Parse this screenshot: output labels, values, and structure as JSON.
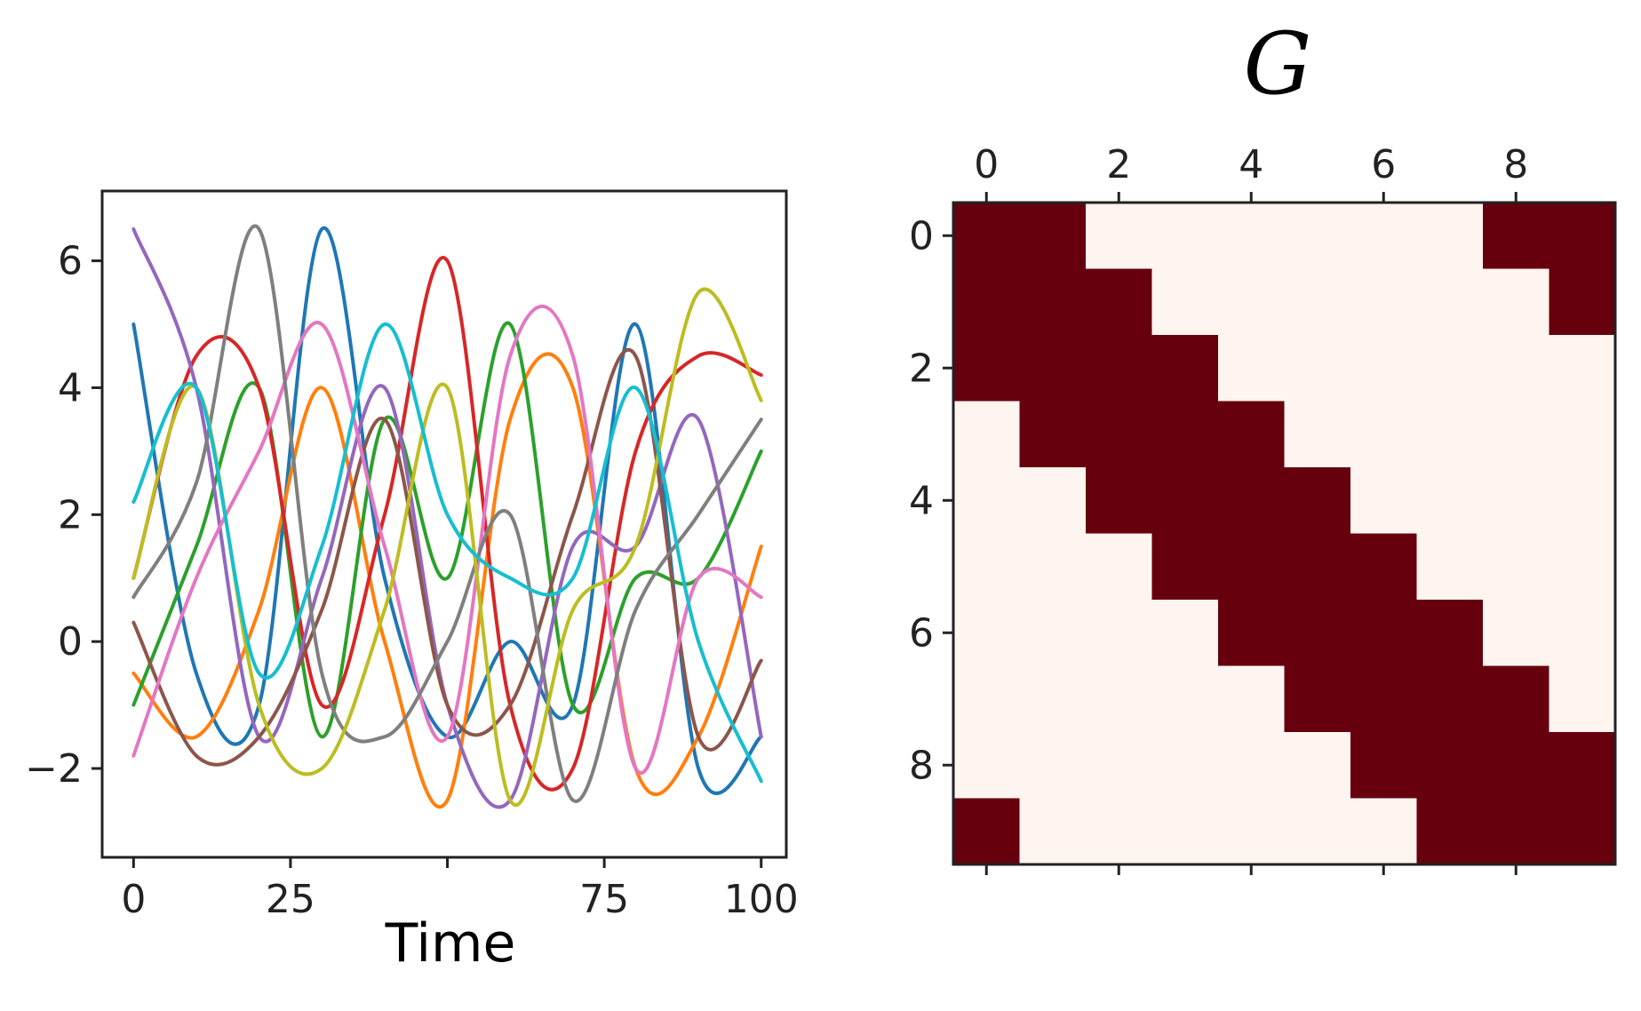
{
  "chart_data": [
    {
      "type": "line",
      "title": "",
      "xlabel": "Time",
      "ylabel": "",
      "xlim": [
        -5,
        104
      ],
      "ylim": [
        -3.4,
        7.1
      ],
      "x_ticks": [
        "0",
        "25",
        "",
        "75",
        "100"
      ],
      "x_tick_values": [
        0,
        25,
        50,
        75,
        100
      ],
      "y_ticks": [
        "6",
        "4",
        "2",
        "0",
        "−2"
      ],
      "y_tick_values": [
        6,
        4,
        2,
        0,
        -2
      ],
      "grid": false,
      "legend": "none",
      "x": [
        0,
        10,
        20,
        30,
        40,
        50,
        60,
        70,
        80,
        90,
        100
      ],
      "series": [
        {
          "color": "#1f77b4",
          "values": [
            5.0,
            -0.5,
            -1.0,
            6.5,
            1.0,
            -1.5,
            0.0,
            -1.0,
            5.0,
            -2.0,
            -1.5
          ]
        },
        {
          "color": "#ff7f0e",
          "values": [
            -0.5,
            -1.5,
            0.5,
            4.0,
            0.0,
            -2.5,
            3.5,
            4.0,
            -2.0,
            -1.5,
            1.5
          ]
        },
        {
          "color": "#2ca02c",
          "values": [
            -1.0,
            1.5,
            4.0,
            -1.5,
            3.5,
            1.0,
            5.0,
            -1.0,
            1.0,
            1.0,
            3.0
          ]
        },
        {
          "color": "#d62728",
          "values": [
            1.0,
            4.5,
            4.0,
            -1.0,
            2.0,
            6.0,
            -1.0,
            -2.0,
            3.0,
            4.5,
            4.2
          ]
        },
        {
          "color": "#9467bd",
          "values": [
            6.5,
            4.0,
            -1.5,
            1.0,
            4.0,
            -1.0,
            -2.5,
            1.5,
            1.5,
            3.5,
            -1.5
          ]
        },
        {
          "color": "#8c564b",
          "values": [
            0.3,
            -1.8,
            -1.5,
            0.5,
            3.5,
            -1.0,
            -1.0,
            2.0,
            4.5,
            -1.5,
            -0.3
          ]
        },
        {
          "color": "#e377c2",
          "values": [
            -1.8,
            1.0,
            3.0,
            5.0,
            1.5,
            -1.5,
            4.5,
            4.5,
            -2.0,
            1.0,
            0.7
          ]
        },
        {
          "color": "#7f7f7f",
          "values": [
            0.7,
            2.5,
            6.5,
            -0.5,
            -1.5,
            0.0,
            2.0,
            -2.5,
            0.5,
            2.0,
            3.5
          ]
        },
        {
          "color": "#bcbd22",
          "values": [
            1.0,
            4.0,
            -1.0,
            -2.0,
            0.5,
            4.0,
            -2.5,
            0.5,
            1.5,
            5.5,
            3.8
          ]
        },
        {
          "color": "#17becf",
          "values": [
            2.2,
            4.0,
            -0.5,
            1.5,
            5.0,
            2.0,
            1.0,
            1.0,
            4.0,
            0.0,
            -2.2
          ]
        }
      ]
    },
    {
      "type": "heatmap",
      "title": "G",
      "xlabel": "",
      "ylabel": "",
      "x_ticks": [
        "0",
        "2",
        "4",
        "6",
        "8"
      ],
      "x_tick_values": [
        0,
        2,
        4,
        6,
        8
      ],
      "y_ticks": [
        "0",
        "2",
        "4",
        "6",
        "8"
      ],
      "y_tick_values": [
        0,
        2,
        4,
        6,
        8
      ],
      "x_tick_position": "top",
      "colors": {
        "on": "#67000d",
        "off": "#fff5f0"
      },
      "matrix": [
        [
          1,
          1,
          0,
          0,
          0,
          0,
          0,
          0,
          1,
          1
        ],
        [
          1,
          1,
          1,
          0,
          0,
          0,
          0,
          0,
          0,
          1
        ],
        [
          1,
          1,
          1,
          1,
          0,
          0,
          0,
          0,
          0,
          0
        ],
        [
          0,
          1,
          1,
          1,
          1,
          0,
          0,
          0,
          0,
          0
        ],
        [
          0,
          0,
          1,
          1,
          1,
          1,
          0,
          0,
          0,
          0
        ],
        [
          0,
          0,
          0,
          1,
          1,
          1,
          1,
          0,
          0,
          0
        ],
        [
          0,
          0,
          0,
          0,
          1,
          1,
          1,
          1,
          0,
          0
        ],
        [
          0,
          0,
          0,
          0,
          0,
          1,
          1,
          1,
          1,
          0
        ],
        [
          0,
          0,
          0,
          0,
          0,
          0,
          1,
          1,
          1,
          1
        ],
        [
          1,
          0,
          0,
          0,
          0,
          0,
          0,
          1,
          1,
          1
        ]
      ]
    }
  ]
}
